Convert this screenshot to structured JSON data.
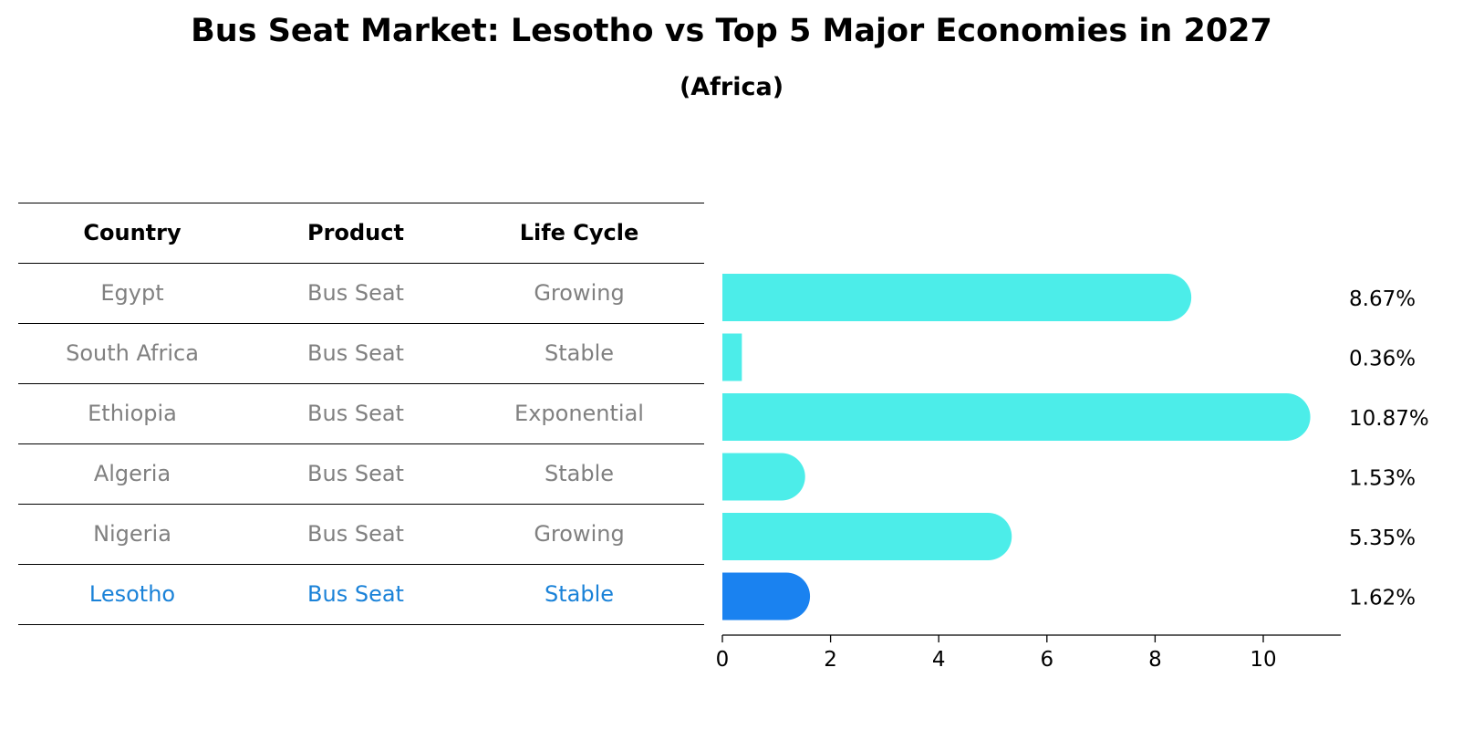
{
  "title": "Bus Seat Market: Lesotho vs Top 5 Major Economies in 2027",
  "subtitle": "(Africa)",
  "table": {
    "headers": [
      "Country",
      "Product",
      "Life Cycle"
    ],
    "rows": [
      {
        "country": "Egypt",
        "product": "Bus Seat",
        "life_cycle": "Growing"
      },
      {
        "country": "South Africa",
        "product": "Bus Seat",
        "life_cycle": "Stable"
      },
      {
        "country": "Ethiopia",
        "product": "Bus Seat",
        "life_cycle": "Exponential"
      },
      {
        "country": "Algeria",
        "product": "Bus Seat",
        "life_cycle": "Stable"
      },
      {
        "country": "Nigeria",
        "product": "Bus Seat",
        "life_cycle": "Growing"
      },
      {
        "country": "Lesotho",
        "product": "Bus Seat",
        "life_cycle": "Stable"
      }
    ],
    "highlight_row": "Lesotho"
  },
  "chart_data": {
    "type": "bar",
    "orientation": "horizontal",
    "categories": [
      "Egypt",
      "South Africa",
      "Ethiopia",
      "Algeria",
      "Nigeria",
      "Lesotho"
    ],
    "values": [
      8.67,
      0.36,
      10.87,
      1.53,
      5.35,
      1.62
    ],
    "value_labels": [
      "8.67%",
      "0.36%",
      "10.87%",
      "1.53%",
      "5.35%",
      "1.62%"
    ],
    "xlim": [
      0,
      11.4
    ],
    "xticks": [
      0,
      2,
      4,
      6,
      8,
      10
    ],
    "grid": false,
    "colors": {
      "default": "#4cede9",
      "highlight": "#1a82f0"
    },
    "highlight": "Lesotho"
  },
  "colors": {
    "table_text": "#808080",
    "highlight_text": "#1a82d8"
  }
}
